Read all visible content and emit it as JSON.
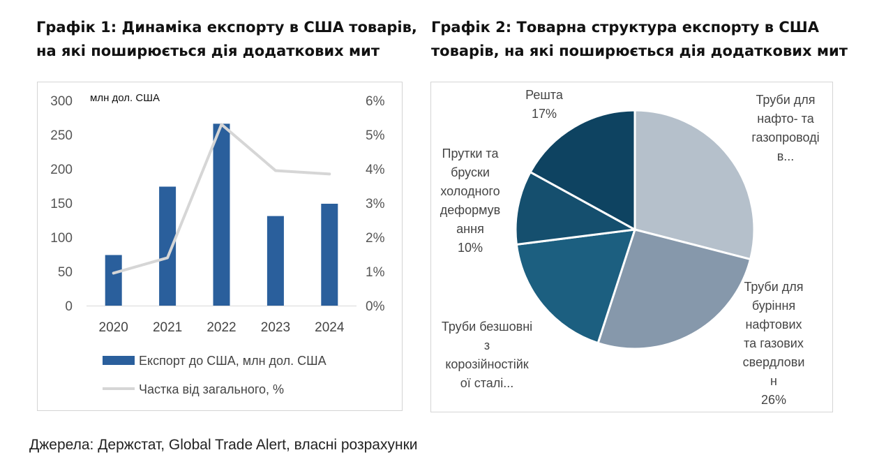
{
  "chart_data": [
    {
      "type": "bar",
      "title_lines": [
        "Графік 1: Динаміка експорту в США товарів,",
        "на які поширюється дія додаткових мит"
      ],
      "units_label": "млн дол. США",
      "categories": [
        "2020",
        "2021",
        "2022",
        "2023",
        "2024"
      ],
      "series": [
        {
          "name": "Експорт до США, млн дол. США",
          "kind": "bar",
          "axis": "left",
          "color": "#2a5f9c",
          "values": [
            74,
            174,
            266,
            131,
            149
          ]
        },
        {
          "name": "Частка від загального, %",
          "kind": "line",
          "axis": "right",
          "color": "#d6d6d6",
          "values": [
            0.95,
            1.4,
            5.3,
            3.95,
            3.85
          ]
        }
      ],
      "ylim": [
        0,
        300
      ],
      "yticks": [
        "0",
        "50",
        "100",
        "150",
        "200",
        "250",
        "300"
      ],
      "y2lim": [
        0,
        6
      ],
      "y2ticks": [
        "0%",
        "1%",
        "2%",
        "3%",
        "4%",
        "5%",
        "6%"
      ],
      "grid": false,
      "legend": "bottom"
    },
    {
      "type": "pie",
      "title_lines": [
        "Графік 2: Товарна структура експорту в США",
        "товарів, на які поширюється дія додаткових мит"
      ],
      "slices": [
        {
          "label_lines": [
            "Труби для",
            "нафто- та",
            "газопроводі",
            "в..."
          ],
          "value": 29,
          "value_label": "",
          "color": "#b5c0cb"
        },
        {
          "label_lines": [
            "Труби для",
            "буріння",
            "нафтових",
            "та газових",
            "свердлови",
            "н"
          ],
          "value": 26,
          "value_label": "26%",
          "color": "#8698ab"
        },
        {
          "label_lines": [
            "Труби безшовні",
            "з",
            "корозійностійк",
            "ої сталі..."
          ],
          "value": 18,
          "value_label": "",
          "color": "#1c5f80"
        },
        {
          "label_lines": [
            "Прутки та",
            "бруски",
            "холодного",
            "деформув",
            "ання"
          ],
          "value": 10,
          "value_label": "10%",
          "color": "#154f6e"
        },
        {
          "label_lines": [
            "Решта"
          ],
          "value": 17,
          "value_label": "17%",
          "color": "#0e4361"
        }
      ]
    }
  ],
  "source_note": "Джерела: Держстат, Global Trade Alert, власні розрахунки"
}
